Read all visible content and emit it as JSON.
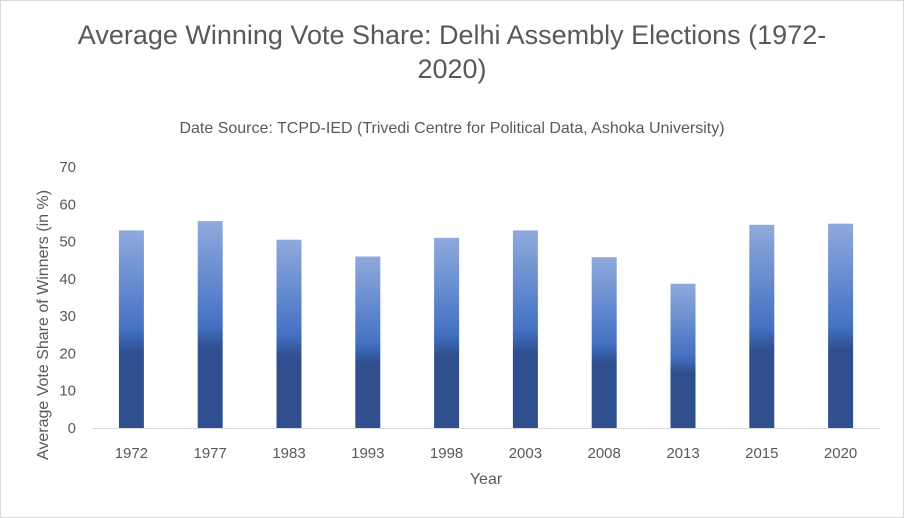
{
  "chart_data": {
    "type": "bar",
    "title_line1": "Average Winning Vote Share: Delhi Assembly Elections (1972-",
    "title_line2": "2020)",
    "subtitle": "Date Source: TCPD-IED (Trivedi Centre for Political Data,  Ashoka University)",
    "xlabel": "Year",
    "ylabel": "Average Vote Share of Winners (in %)",
    "categories": [
      "1972",
      "1977",
      "1983",
      "1993",
      "1998",
      "2003",
      "2008",
      "2013",
      "2015",
      "2020"
    ],
    "values": [
      53,
      55.5,
      50.5,
      46,
      51,
      53,
      45.8,
      38.7,
      54.5,
      54.8
    ],
    "ylim": [
      0,
      70
    ],
    "yticks": [
      "0",
      "10",
      "20",
      "30",
      "40",
      "50",
      "60",
      "70"
    ],
    "grid": false,
    "colors": {
      "bar_top": "#8faadc",
      "bar_mid": "#4472c4",
      "bar_bottom": "#2f4f8f",
      "axis": "#d9d9d9",
      "text": "#595959"
    }
  }
}
